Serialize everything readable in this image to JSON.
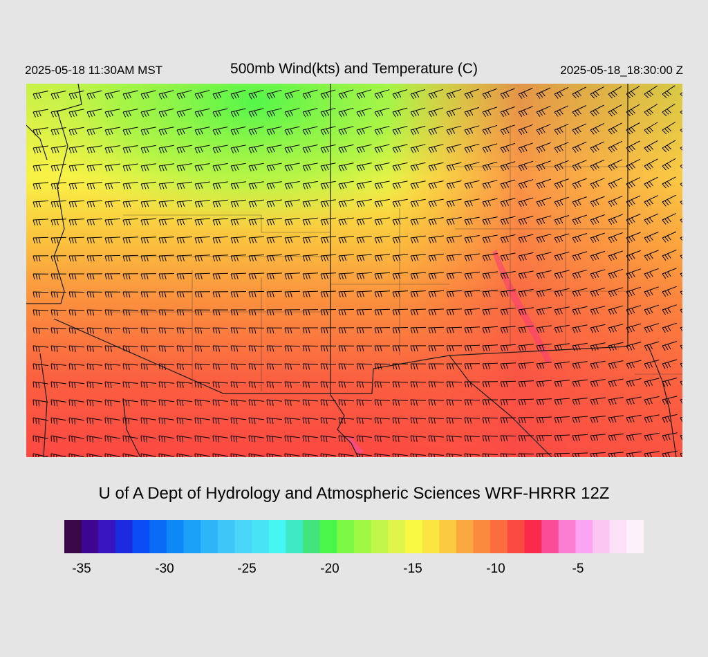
{
  "header": {
    "local_time": "2025-05-18 11:30AM MST",
    "title": "500mb Wind(kts) and Temperature (C)",
    "valid_time": "2025-05-18_18:30:00 Z"
  },
  "credit": "U of A Dept of Hydrology and Atmospheric Sciences WRF-HRRR 12Z",
  "colorbar": {
    "colors": [
      "#3a0848",
      "#3d0590",
      "#3714c0",
      "#1c2ae0",
      "#0a4cf5",
      "#0a6bf6",
      "#0f88f7",
      "#1ba0f8",
      "#2eb4f8",
      "#3ec6f8",
      "#48d5f8",
      "#48e4f6",
      "#46f6f2",
      "#3ee9c6",
      "#42e47d",
      "#49f64a",
      "#7bf843",
      "#9ef843",
      "#c0f647",
      "#e0f54a",
      "#f9f843",
      "#fbe641",
      "#fbca3f",
      "#fba840",
      "#fb8a3f",
      "#fb6c3f",
      "#fb4a41",
      "#fa2a4c",
      "#fa4d96",
      "#fb7ed3",
      "#fca4f4",
      "#fcc6f2",
      "#fce0f8",
      "#fdf2fc"
    ],
    "tick_labels": [
      "-35",
      "-30",
      "-25",
      "-20",
      "-15",
      "-10",
      "-5"
    ]
  }
}
